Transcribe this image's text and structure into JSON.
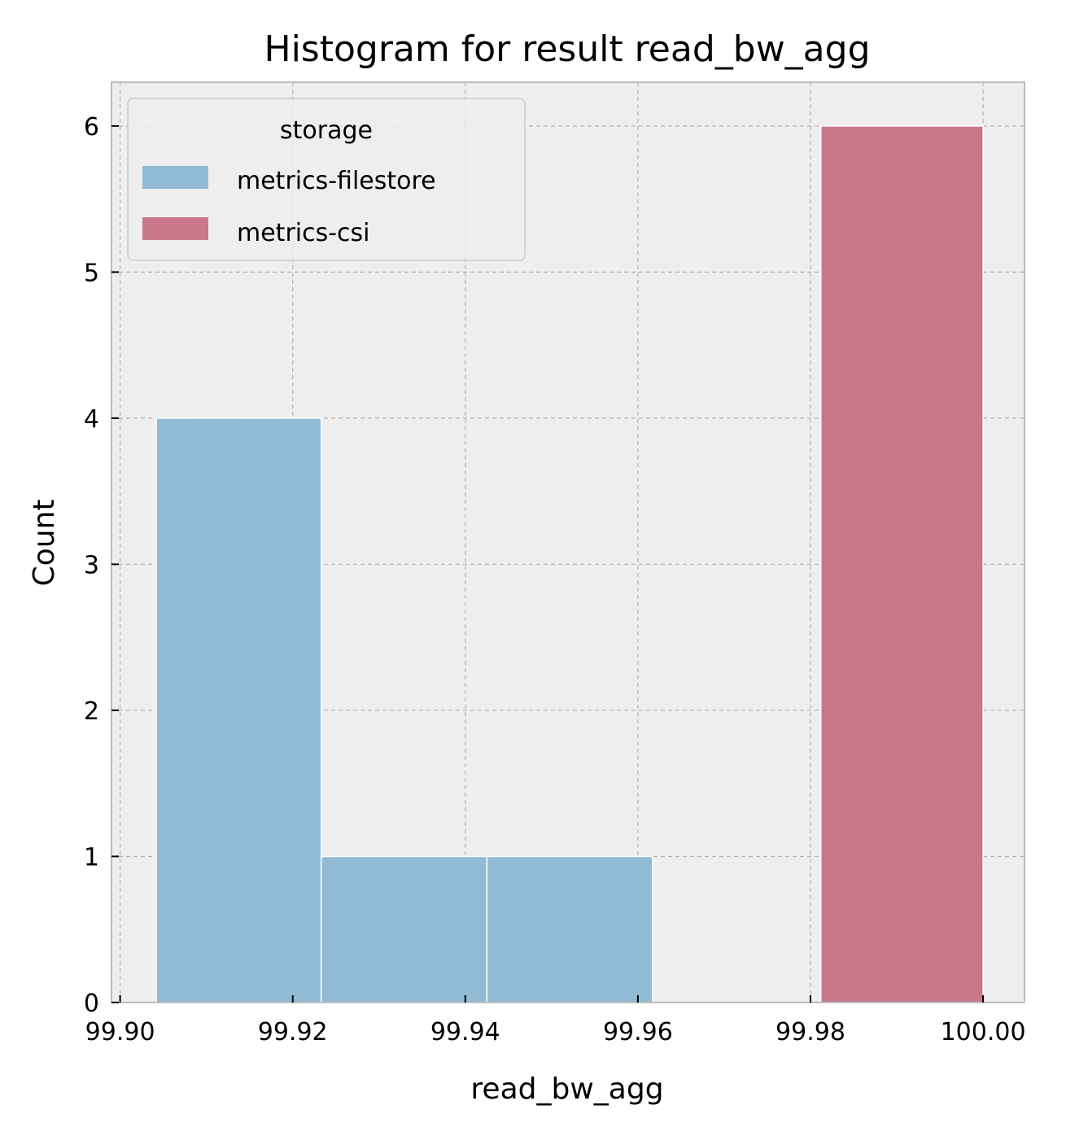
{
  "chart_data": {
    "type": "bar",
    "title": "Histogram for result read_bw_agg",
    "xlabel": "read_bw_agg",
    "ylabel": "Count",
    "xlim": [
      99.899,
      100.0048
    ],
    "ylim": [
      0,
      6.3
    ],
    "x_ticks": [
      99.9,
      99.92,
      99.94,
      99.96,
      99.98,
      100.0
    ],
    "x_tick_labels": [
      "99.90",
      "99.92",
      "99.94",
      "99.96",
      "99.98",
      "100.00"
    ],
    "y_ticks": [
      0,
      1,
      2,
      3,
      4,
      5,
      6
    ],
    "y_tick_labels": [
      "0",
      "1",
      "2",
      "3",
      "4",
      "5",
      "6"
    ],
    "grid": true,
    "legend": {
      "title": "storage",
      "position": "top-left"
    },
    "series": [
      {
        "name": "metrics-filestore",
        "color": "#91bad4",
        "bins": [
          {
            "x0": 99.9042,
            "x1": 99.9233,
            "count": 4
          },
          {
            "x0": 99.9233,
            "x1": 99.9425,
            "count": 1
          },
          {
            "x0": 99.9425,
            "x1": 99.9617,
            "count": 1
          }
        ]
      },
      {
        "name": "metrics-csi",
        "color": "#c8788a",
        "bins": [
          {
            "x0": 99.9812,
            "x1": 100.0,
            "count": 6
          }
        ]
      }
    ]
  }
}
